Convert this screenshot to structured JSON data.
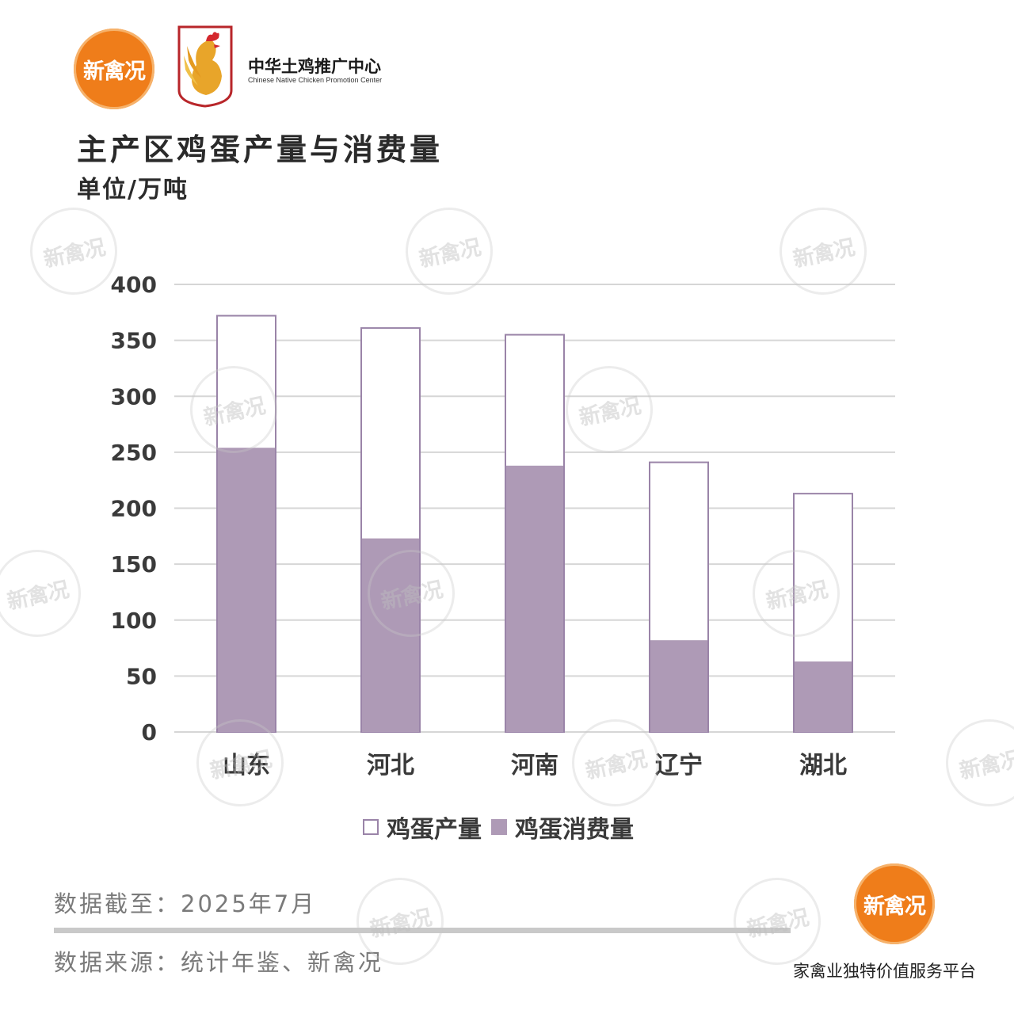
{
  "header": {
    "brand_logo_text": "新禽况",
    "org_name": "中华土鸡推广中心",
    "org_name_en": "Chinese Native Chicken Promotion Center"
  },
  "title": "主产区鸡蛋产量与消费量",
  "unit": "单位/万吨",
  "chart_data": {
    "type": "bar",
    "categories": [
      "山东",
      "河北",
      "河南",
      "辽宁",
      "湖北"
    ],
    "series": [
      {
        "name": "鸡蛋产量",
        "values": [
          372,
          361,
          355,
          241,
          213
        ],
        "color": "#ffffff",
        "stroke": "#9a84a8"
      },
      {
        "name": "鸡蛋消费量",
        "values": [
          254,
          173,
          238,
          82,
          63
        ],
        "color": "#ae9ab6"
      }
    ],
    "overlap": true,
    "ylim": [
      0,
      400
    ],
    "yticks": [
      0,
      50,
      100,
      150,
      200,
      250,
      300,
      350,
      400
    ],
    "grid": true,
    "legend": "bottom"
  },
  "footer": {
    "date": "数据截至：2025年7月",
    "source": "数据来源：统计年鉴、新禽况",
    "logo_text": "新禽况",
    "slogan": "家禽业独特价值服务平台"
  },
  "watermark": "新禽况"
}
